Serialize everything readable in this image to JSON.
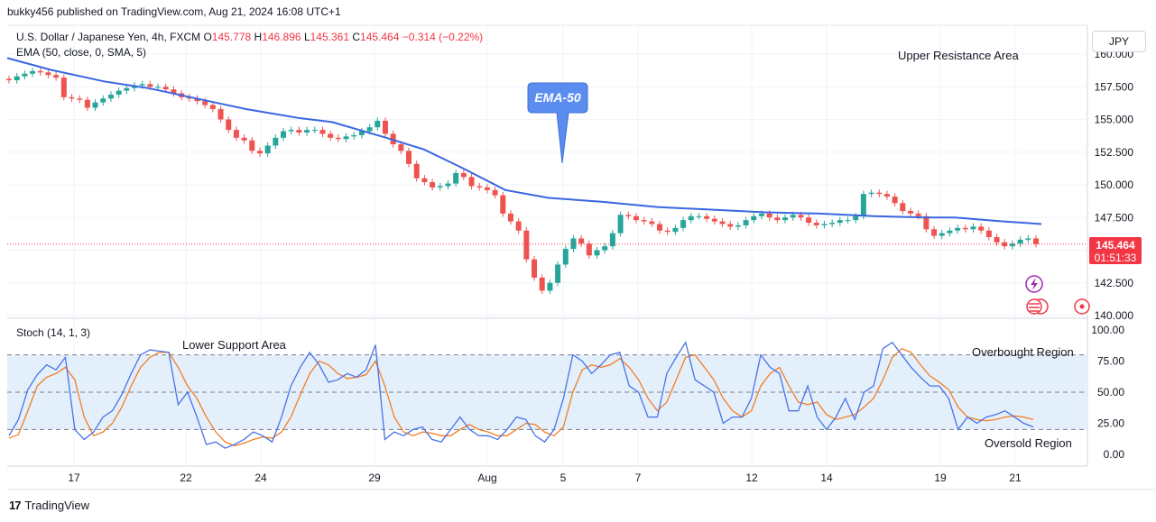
{
  "header": {
    "publisher": "bukky456 published on TradingView.com, Aug 21, 2024 16:08 UTC+1"
  },
  "legend": {
    "symbol": "U.S. Dollar / Japanese Yen, 4h, FXCM",
    "o_label": "O",
    "o": "145.778",
    "h_label": "H",
    "h": "146.896",
    "l_label": "L",
    "l": "145.361",
    "c_label": "C",
    "c": "145.464",
    "change": "−0.314 (−0.22%)",
    "ema": "EMA (50, close, 0, SMA, 5)",
    "stoch": "Stoch (14, 1, 3)"
  },
  "currency": "JPY",
  "price_badge": {
    "price": "145.464",
    "countdown": "01:51:33"
  },
  "annotations": {
    "upper_resistance": "Upper Resistance Area",
    "lower_support": "Lower Support Area",
    "overbought": "Overbought Region",
    "oversold": "Oversold Region",
    "ema_callout": "EMA-50"
  },
  "footer": {
    "brand": "TradingView"
  },
  "colors": {
    "up": "#26a69a",
    "down": "#ef5350",
    "ema": "#3a66e0",
    "k": "#4a72e8",
    "d": "#f57c22",
    "band": "#e3f0fb",
    "last": "#f23645"
  },
  "chart_data": [
    {
      "type": "candlestick",
      "series_name": "U.S. Dollar / Japanese Yen",
      "ylim": [
        140.0,
        160.0
      ],
      "yticks": [
        "140.000",
        "142.500",
        "145.000",
        "147.500",
        "150.000",
        "152.500",
        "155.000",
        "157.500",
        "160.000"
      ],
      "xticks": [
        "17",
        "22",
        "24",
        "29",
        "Aug",
        "5",
        "7",
        "12",
        "14",
        "19",
        "21"
      ],
      "last_price": 145.464,
      "closes": [
        158.0,
        158.3,
        158.5,
        158.7,
        158.6,
        158.4,
        158.2,
        156.7,
        156.6,
        156.5,
        155.9,
        156.3,
        156.6,
        156.9,
        157.2,
        157.4,
        157.6,
        157.7,
        157.5,
        157.5,
        157.3,
        157.0,
        156.7,
        156.6,
        156.4,
        156.1,
        155.8,
        155.0,
        154.2,
        153.6,
        153.4,
        152.6,
        152.4,
        153.0,
        153.6,
        154.1,
        154.2,
        154.0,
        154.2,
        154.2,
        153.9,
        153.6,
        153.5,
        153.7,
        153.8,
        154.1,
        154.4,
        154.9,
        153.9,
        153.1,
        152.6,
        151.6,
        150.5,
        150.2,
        149.8,
        149.9,
        150.1,
        150.9,
        150.6,
        149.9,
        149.8,
        149.6,
        149.2,
        147.8,
        147.2,
        146.5,
        144.3,
        142.9,
        141.9,
        142.5,
        143.9,
        145.1,
        145.9,
        145.5,
        144.6,
        145.0,
        145.3,
        146.3,
        147.7,
        147.6,
        147.3,
        147.2,
        147.0,
        146.5,
        146.4,
        146.7,
        147.3,
        147.6,
        147.6,
        147.4,
        147.2,
        147.0,
        146.8,
        146.9,
        147.3,
        147.6,
        147.8,
        147.5,
        147.3,
        147.5,
        147.7,
        147.5,
        147.1,
        146.9,
        147.0,
        147.1,
        147.3,
        147.3,
        147.6,
        149.3,
        149.4,
        149.3,
        149.1,
        148.6,
        148.0,
        147.8,
        147.6,
        146.6,
        146.1,
        146.3,
        146.5,
        146.7,
        146.6,
        146.8,
        146.5,
        146.0,
        145.6,
        145.3,
        145.5,
        145.8,
        145.9,
        145.464
      ],
      "ema50": [
        159.7,
        158.8,
        157.9,
        157.4,
        156.6,
        155.8,
        155.1,
        154.8,
        153.6,
        152.7,
        151.3,
        149.6,
        149.0,
        148.7,
        148.3,
        148.1,
        147.9,
        147.8,
        147.6,
        147.5,
        147.5,
        147.2,
        147.0
      ],
      "ema50_x": [
        0,
        8,
        18,
        26,
        35,
        44,
        54,
        60,
        70,
        77,
        84,
        92,
        100,
        110,
        120,
        130,
        140,
        150,
        160,
        170,
        175,
        184,
        191
      ]
    },
    {
      "type": "line",
      "series_name": "Stoch",
      "ylim": [
        0,
        100
      ],
      "yticks": [
        "0.00",
        "25.00",
        "50.00",
        "75.00",
        "100.00"
      ],
      "bands": [
        20,
        80
      ],
      "k": [
        15,
        28,
        52,
        64,
        72,
        68,
        78,
        20,
        12,
        18,
        30,
        35,
        48,
        65,
        80,
        84,
        83,
        82,
        40,
        50,
        30,
        8,
        10,
        5,
        8,
        12,
        18,
        15,
        10,
        30,
        55,
        70,
        82,
        72,
        58,
        60,
        65,
        62,
        68,
        88,
        12,
        18,
        15,
        20,
        22,
        12,
        10,
        20,
        30,
        20,
        15,
        15,
        12,
        20,
        30,
        28,
        15,
        10,
        20,
        45,
        80,
        75,
        65,
        72,
        80,
        82,
        55,
        50,
        30,
        30,
        65,
        78,
        90,
        60,
        55,
        50,
        25,
        30,
        30,
        45,
        80,
        70,
        65,
        35,
        35,
        55,
        30,
        20,
        30,
        45,
        28,
        50,
        55,
        85,
        90,
        80,
        70,
        62,
        55,
        55,
        45,
        20,
        30,
        25,
        30,
        32,
        35,
        30,
        25,
        22
      ],
      "d": [
        13,
        16,
        35,
        55,
        62,
        65,
        70,
        60,
        30,
        15,
        18,
        25,
        38,
        55,
        70,
        78,
        82,
        82,
        70,
        55,
        45,
        30,
        18,
        10,
        7,
        9,
        12,
        14,
        13,
        18,
        30,
        48,
        65,
        75,
        72,
        65,
        61,
        62,
        64,
        75,
        55,
        30,
        18,
        15,
        18,
        17,
        15,
        15,
        20,
        24,
        20,
        18,
        15,
        15,
        20,
        25,
        24,
        18,
        15,
        22,
        50,
        68,
        72,
        70,
        72,
        77,
        70,
        60,
        45,
        35,
        42,
        60,
        78,
        80,
        70,
        60,
        45,
        35,
        30,
        35,
        55,
        65,
        70,
        55,
        42,
        40,
        42,
        32,
        28,
        30,
        32,
        38,
        45,
        60,
        78,
        85,
        82,
        72,
        63,
        58,
        52,
        38,
        30,
        28,
        27,
        28,
        30,
        31,
        30,
        28
      ]
    }
  ]
}
